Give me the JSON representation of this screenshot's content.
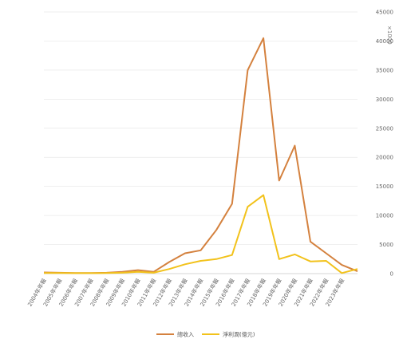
{
  "chart_data": {
    "type": "line",
    "unit_label": "×1000",
    "ylim": [
      0,
      45000
    ],
    "y_ticks": [
      0,
      5000,
      10000,
      15000,
      20000,
      25000,
      30000,
      35000,
      40000,
      45000
    ],
    "grid": "horizontal",
    "legend_position": "bottom",
    "categories": [
      "2004年年報",
      "2005年年報",
      "2006年年報",
      "2007年年報",
      "2008年年報",
      "2009年年報",
      "2010年年報",
      "2011年年報",
      "2012年年報",
      "2013年年報",
      "2014年年報",
      "2015年年報",
      "2016年年報",
      "2017年年報",
      "2018年年報",
      "2019年年報",
      "2020年年報",
      "2021年年報",
      "2022年年報",
      "2023年年報"
    ],
    "series": [
      {
        "name": "總收入",
        "color": "#d4813e",
        "values": [
          200,
          150,
          100,
          100,
          150,
          300,
          600,
          300,
          2000,
          3500,
          4000,
          7500,
          12000,
          35000,
          40500,
          16000,
          22000,
          5500,
          3500,
          1500
        ]
      },
      {
        "name": "淨利潤(億元)",
        "color": "#f2c21b",
        "values": [
          100,
          100,
          80,
          80,
          100,
          150,
          300,
          150,
          800,
          1600,
          2200,
          2500,
          3200,
          11500,
          13500,
          2500,
          3300,
          2100,
          2200,
          100
        ]
      }
    ],
    "extra_points": [
      {
        "series": 0,
        "value": 400
      },
      {
        "series": 1,
        "value": 800
      }
    ]
  }
}
